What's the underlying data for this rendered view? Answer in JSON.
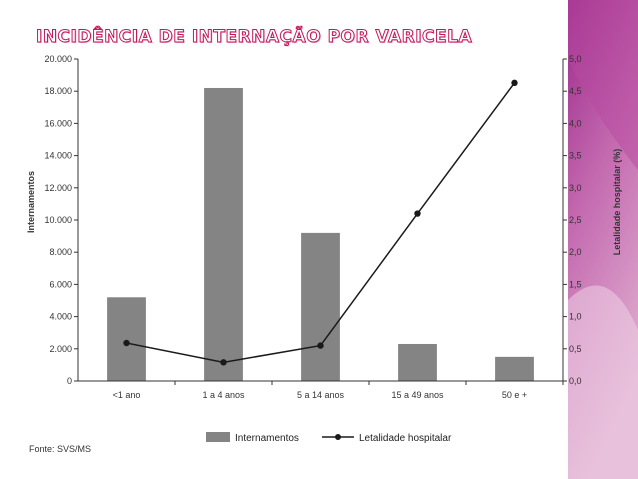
{
  "slide": {
    "title": "INCIDÊNCIA DE INTERNAÇÃO POR VARICELA",
    "source": "Fonte: SVS/MS"
  },
  "colors": {
    "bar": "#848484",
    "line": "#1a1a1a",
    "title_outline": "#c2185b",
    "deco_band_top": "#9c2a8a",
    "deco_band_bottom": "#e0b0d0"
  },
  "chart_data": {
    "type": "bar",
    "title": "",
    "categories": [
      "<1 ano",
      "1 a 4 anos",
      "5 a 14 anos",
      "15 a 49 anos",
      "50 e +"
    ],
    "series": [
      {
        "name": "Internamentos",
        "type": "bar",
        "axis": "left",
        "values": [
          5200,
          18200,
          9200,
          2300,
          1500
        ]
      },
      {
        "name": "Letalidade hospitalar",
        "type": "line",
        "axis": "right",
        "values": [
          0.59,
          0.29,
          0.55,
          2.6,
          4.63
        ]
      }
    ],
    "ylabel": "Internamentos",
    "y2label": "Letalidade hospitalar (%)",
    "ylim": [
      0,
      20000
    ],
    "y2lim": [
      0,
      5.0
    ],
    "yticks": [
      "0",
      "2.000",
      "4.000",
      "6.000",
      "8.000",
      "10.000",
      "12.000",
      "14.000",
      "16.000",
      "18.000",
      "20.000"
    ],
    "y2ticks": [
      "0,0",
      "0,5",
      "1,0",
      "1,5",
      "2,0",
      "2,5",
      "3,0",
      "3,5",
      "4,0",
      "4,5",
      "5,0"
    ],
    "legend": {
      "position": "bottom",
      "items": [
        "Internamentos",
        "Letalidade hospitalar"
      ]
    },
    "grid": false
  }
}
